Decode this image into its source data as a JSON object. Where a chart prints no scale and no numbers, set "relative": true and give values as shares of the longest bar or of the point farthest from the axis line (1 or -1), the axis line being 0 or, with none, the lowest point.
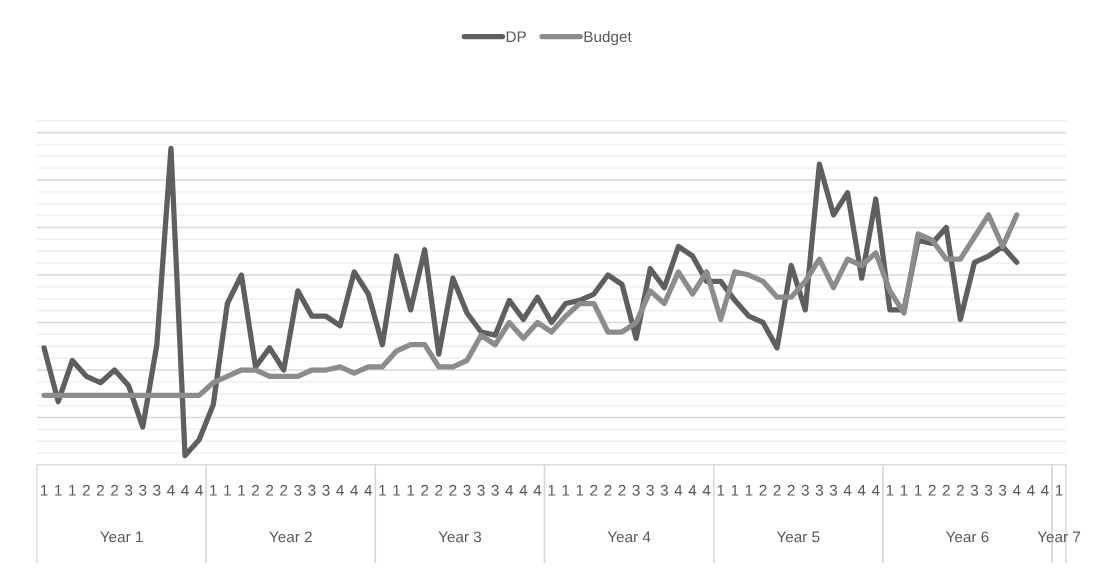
{
  "chart_data": {
    "type": "line",
    "relative": true,
    "grid": "y",
    "legend": "top",
    "marker": "none",
    "line_style": "solid",
    "categories": [
      "1",
      "1",
      "1",
      "2",
      "2",
      "2",
      "3",
      "3",
      "3",
      "4",
      "4",
      "4",
      "1",
      "1",
      "1",
      "2",
      "2",
      "2",
      "3",
      "3",
      "3",
      "4",
      "4",
      "4",
      "1",
      "1",
      "1",
      "2",
      "2",
      "2",
      "3",
      "3",
      "3",
      "4",
      "4",
      "4",
      "1",
      "1",
      "1",
      "2",
      "2",
      "2",
      "3",
      "3",
      "3",
      "4",
      "4",
      "4",
      "1",
      "1",
      "1",
      "2",
      "2",
      "2",
      "3",
      "3",
      "3",
      "4",
      "4",
      "4",
      "1",
      "1",
      "1",
      "2",
      "2",
      "2",
      "3",
      "3",
      "3",
      "4",
      "4",
      "4",
      "1"
    ],
    "annotations": [
      "Year 1",
      "Year 2",
      "Year 3",
      "Year 4",
      "Year 5",
      "Year 6",
      "Year 7"
    ],
    "series": [
      {
        "name": "DP",
        "color": "#5f5f5f",
        "values": [
          0.37,
          0.2,
          0.33,
          0.28,
          0.26,
          0.3,
          0.25,
          0.12,
          0.38,
          1.0,
          0.03,
          0.08,
          0.19,
          0.51,
          0.6,
          0.31,
          0.37,
          0.3,
          0.55,
          0.47,
          0.47,
          0.44,
          0.61,
          0.54,
          0.38,
          0.66,
          0.49,
          0.68,
          0.35,
          0.59,
          0.48,
          0.42,
          0.41,
          0.52,
          0.46,
          0.53,
          0.45,
          0.51,
          0.52,
          0.54,
          0.6,
          0.57,
          0.4,
          0.62,
          0.56,
          0.69,
          0.66,
          0.58,
          0.58,
          0.52,
          0.47,
          0.45,
          0.37,
          0.63,
          0.49,
          0.95,
          0.79,
          0.86,
          0.59,
          0.84,
          0.49,
          0.49,
          0.71,
          0.7,
          0.75,
          0.46,
          0.64,
          0.66,
          0.69,
          0.64,
          null,
          null,
          null
        ]
      },
      {
        "name": "Budget",
        "color": "#8c8c8c",
        "values": [
          0.22,
          0.22,
          0.22,
          0.22,
          0.22,
          0.22,
          0.22,
          0.22,
          0.22,
          0.22,
          0.22,
          0.22,
          0.26,
          0.28,
          0.3,
          0.3,
          0.28,
          0.28,
          0.28,
          0.3,
          0.3,
          0.31,
          0.29,
          0.31,
          0.31,
          0.36,
          0.38,
          0.38,
          0.31,
          0.31,
          0.33,
          0.41,
          0.38,
          0.45,
          0.4,
          0.45,
          0.42,
          0.47,
          0.51,
          0.51,
          0.42,
          0.42,
          0.45,
          0.55,
          0.51,
          0.61,
          0.54,
          0.61,
          0.46,
          0.61,
          0.6,
          0.58,
          0.53,
          0.53,
          0.58,
          0.65,
          0.56,
          0.65,
          0.63,
          0.67,
          0.55,
          0.48,
          0.73,
          0.71,
          0.65,
          0.65,
          0.72,
          0.79,
          0.69,
          0.79,
          null,
          null,
          null
        ]
      }
    ]
  }
}
